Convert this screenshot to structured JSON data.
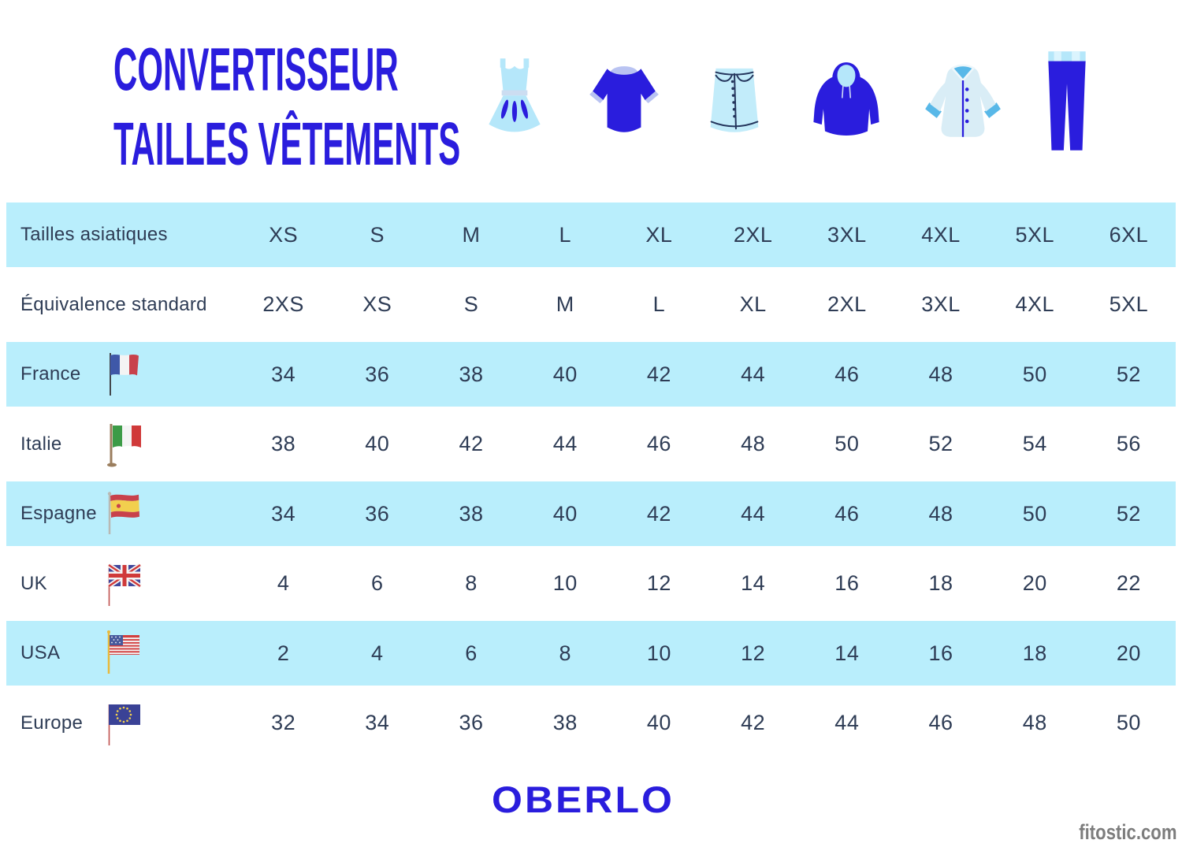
{
  "title": {
    "line1": "CONVERTISSEUR",
    "line2": "TAILLES VÊTEMENTS"
  },
  "icons": [
    "dress-icon",
    "tshirt-icon",
    "skirt-icon",
    "hoodie-icon",
    "coat-icon",
    "leggings-icon"
  ],
  "chart_data": {
    "type": "table",
    "title": "Convertisseur tailles vêtements",
    "columns_header_row": "Tailles asiatiques",
    "rows": [
      {
        "label": "Tailles asiatiques",
        "flag": "",
        "values": [
          "XS",
          "S",
          "M",
          "L",
          "XL",
          "2XL",
          "3XL",
          "4XL",
          "5XL",
          "6XL"
        ]
      },
      {
        "label": "Équivalence standard",
        "flag": "",
        "values": [
          "2XS",
          "XS",
          "S",
          "M",
          "L",
          "XL",
          "2XL",
          "3XL",
          "4XL",
          "5XL"
        ]
      },
      {
        "label": "France",
        "flag": "fr",
        "values": [
          "34",
          "36",
          "38",
          "40",
          "42",
          "44",
          "46",
          "48",
          "50",
          "52"
        ]
      },
      {
        "label": "Italie",
        "flag": "it",
        "values": [
          "38",
          "40",
          "42",
          "44",
          "46",
          "48",
          "50",
          "52",
          "54",
          "56"
        ]
      },
      {
        "label": "Espagne",
        "flag": "es",
        "values": [
          "34",
          "36",
          "38",
          "40",
          "42",
          "44",
          "46",
          "48",
          "50",
          "52"
        ]
      },
      {
        "label": "UK",
        "flag": "gb",
        "values": [
          "4",
          "6",
          "8",
          "10",
          "12",
          "14",
          "16",
          "18",
          "20",
          "22"
        ]
      },
      {
        "label": "USA",
        "flag": "us",
        "values": [
          "2",
          "4",
          "6",
          "8",
          "10",
          "12",
          "14",
          "16",
          "18",
          "20"
        ]
      },
      {
        "label": "Europe",
        "flag": "eu",
        "values": [
          "32",
          "34",
          "36",
          "38",
          "40",
          "42",
          "44",
          "46",
          "48",
          "50"
        ]
      }
    ]
  },
  "footer": {
    "logo": "OBERLO",
    "watermark": "fitostic.com"
  },
  "colors": {
    "accent_blue": "#2a1ddd",
    "row_highlight": "#b9eefc",
    "text_dark": "#2e3c55",
    "light_item": "#b5e7fa",
    "watermark_gray": "#7d7d7d"
  }
}
